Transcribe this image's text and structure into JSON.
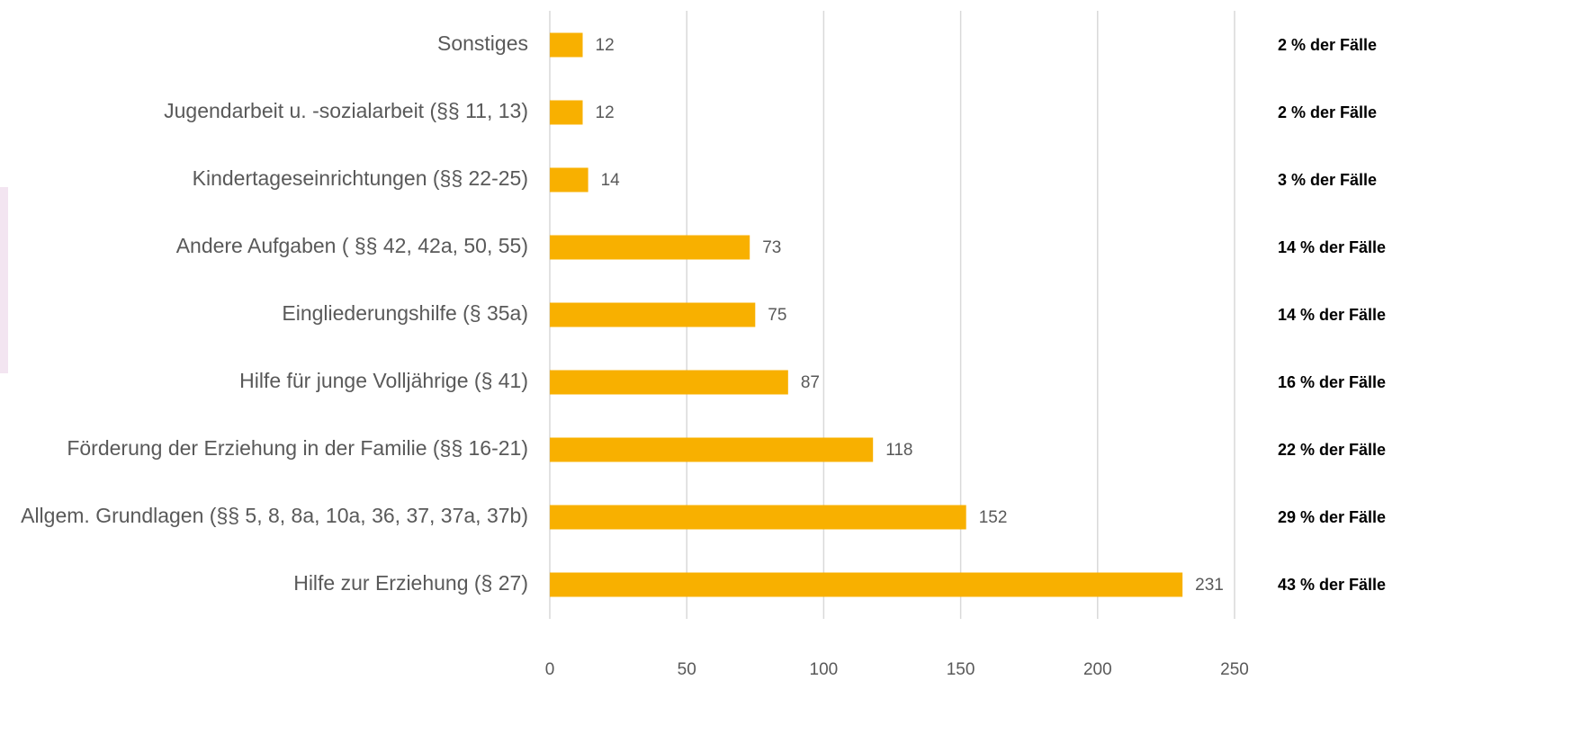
{
  "chart_data": {
    "type": "bar",
    "orientation": "horizontal",
    "categories": [
      "Sonstiges",
      "Jugendarbeit u. -sozialarbeit (§§ 11, 13)",
      "Kindertageseinrichtungen (§§ 22-25)",
      "Andere Aufgaben ( §§ 42, 42a, 50, 55)",
      "Eingliederungshilfe (§ 35a)",
      "Hilfe für junge Volljährige (§ 41)",
      "Förderung der Erziehung in der Familie (§§ 16-21)",
      "Allgem. Grundlagen (§§ 5, 8, 8a, 10a, 36, 37, 37a, 37b)",
      "Hilfe zur Erziehung (§ 27)"
    ],
    "values": [
      12,
      12,
      14,
      73,
      75,
      87,
      118,
      152,
      231
    ],
    "annotations": [
      "2 % der Fälle",
      "2 % der Fälle",
      "3 % der Fälle",
      "14 % der Fälle",
      "14 % der Fälle",
      "16 % der Fälle",
      "22 % der Fälle",
      "29 % der Fälle",
      "43 % der Fälle"
    ],
    "color": "#f8b000",
    "xlim": [
      0,
      250
    ],
    "xticks": [
      0,
      50,
      100,
      150,
      200,
      250
    ],
    "grid": true
  }
}
